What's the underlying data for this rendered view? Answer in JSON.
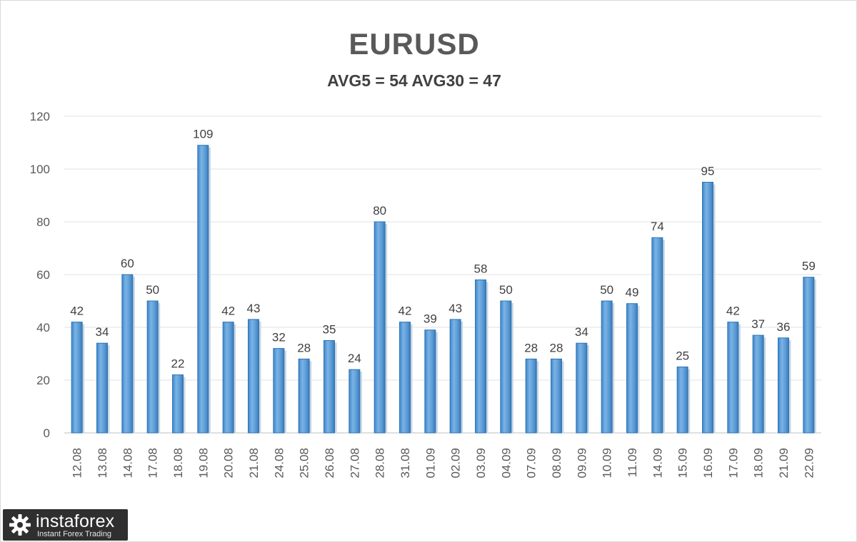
{
  "chart_data": {
    "type": "bar",
    "title": "EURUSD",
    "subtitle": "AVG5 = 54 AVG30 = 47",
    "categories": [
      "12.08",
      "13.08",
      "14.08",
      "17.08",
      "18.08",
      "19.08",
      "20.08",
      "21.08",
      "24.08",
      "25.08",
      "26.08",
      "27.08",
      "28.08",
      "31.08",
      "01.09",
      "02.09",
      "03.09",
      "04.09",
      "07.09",
      "08.09",
      "09.09",
      "10.09",
      "11.09",
      "14.09",
      "15.09",
      "16.09",
      "17.09",
      "18.09",
      "21.09",
      "22.09"
    ],
    "values": [
      42,
      34,
      60,
      50,
      22,
      109,
      42,
      43,
      32,
      28,
      35,
      24,
      80,
      42,
      39,
      43,
      58,
      50,
      28,
      28,
      34,
      50,
      49,
      74,
      25,
      95,
      42,
      37,
      36,
      59
    ],
    "ylim": [
      0,
      120
    ],
    "yticks": [
      0,
      20,
      40,
      60,
      80,
      100,
      120
    ],
    "grid": true,
    "legend": "none",
    "bar_color": "#5b9bd5",
    "bar_edge_color": "#2e75b6"
  },
  "watermark": {
    "brand": "instaforex",
    "tagline": "Instant Forex Trading"
  }
}
